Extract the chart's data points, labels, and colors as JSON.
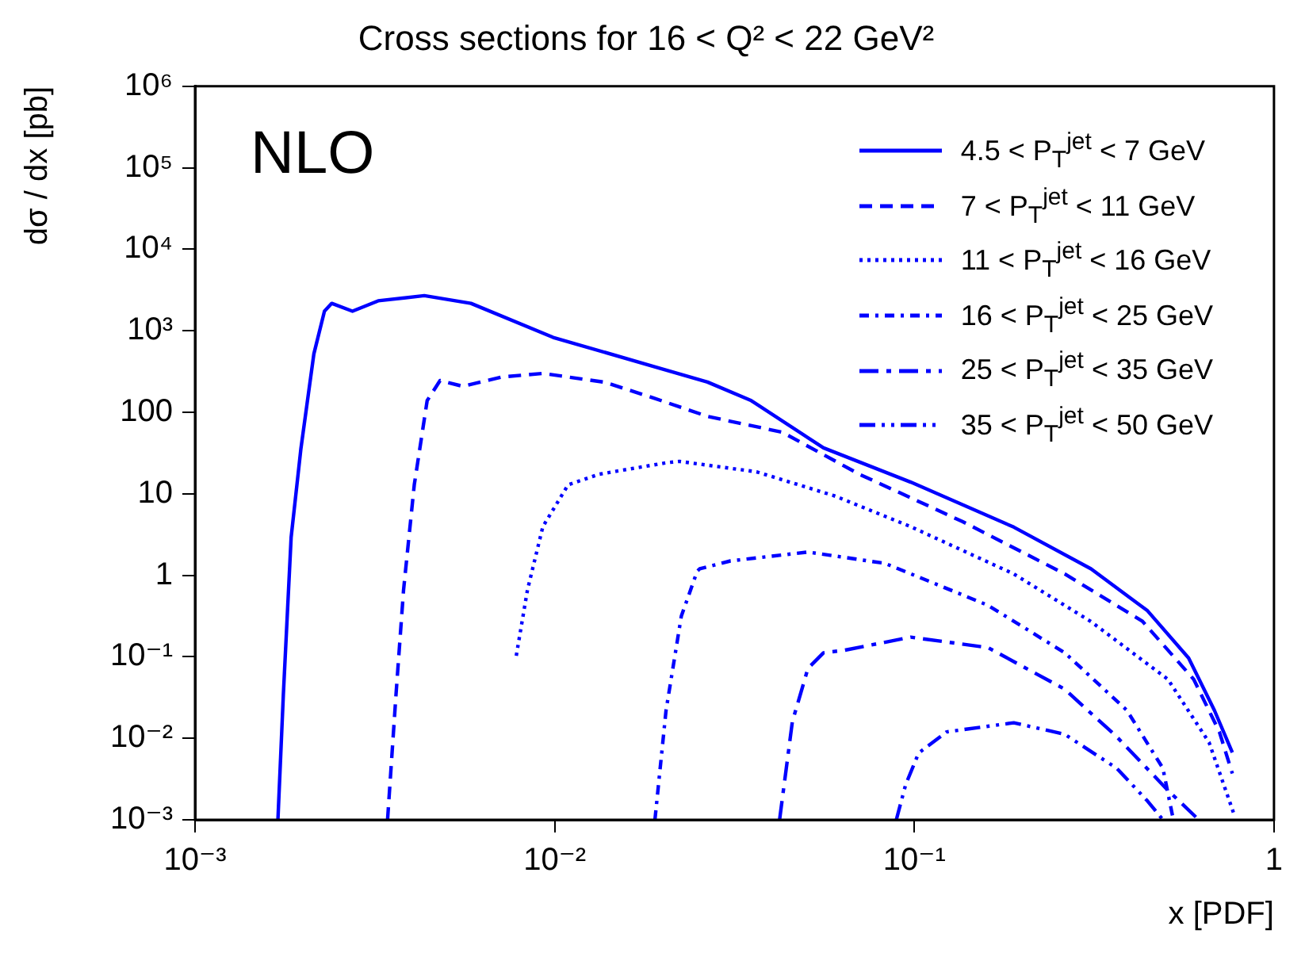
{
  "chart_data": {
    "type": "line",
    "title": "Cross sections for 16 < Q² < 22 GeV²",
    "xlabel": "x [PDF]",
    "ylabel": "dσ / dx [pb]",
    "annotations": [
      "NLO"
    ],
    "log": "xy",
    "grid": false,
    "legend": "top right",
    "marker": "none",
    "xlim": [
      0.001,
      1
    ],
    "ylim": [
      0.001,
      1000000
    ],
    "xticks": [
      {
        "value": 0.001,
        "label": "10⁻³"
      },
      {
        "value": 0.01,
        "label": "10⁻²"
      },
      {
        "value": 0.1,
        "label": "10⁻¹"
      },
      1
    ],
    "yticks": [
      {
        "value": 0.001,
        "label": "10⁻³"
      },
      {
        "value": 0.01,
        "label": "10⁻²"
      },
      {
        "value": 0.1,
        "label": "10⁻¹"
      },
      1,
      10,
      100,
      {
        "value": 1000,
        "label": "10³"
      },
      {
        "value": 10000,
        "label": "10⁴"
      },
      {
        "value": 100000,
        "label": "10⁵"
      },
      {
        "value": 1000000,
        "label": "10⁶"
      }
    ],
    "series": [
      {
        "name": "4.5 < P$_{T}$$^{jet}$ < 7 GeV",
        "color": "#0000ff",
        "line_style": "solid",
        "x": [
          0.0017,
          0.00176,
          0.00185,
          0.00197,
          0.00214,
          0.00229,
          0.0024,
          0.00274,
          0.00323,
          0.00434,
          0.00585,
          0.0099,
          0.0188,
          0.0266,
          0.0352,
          0.0559,
          0.0977,
          0.189,
          0.31,
          0.445,
          0.579,
          0.683,
          0.766
        ],
        "values": [
          0.001,
          0.034,
          2.9,
          36,
          520,
          1740,
          2170,
          1740,
          2330,
          2700,
          2170,
          830,
          366,
          235,
          139,
          36.6,
          13.9,
          3.9,
          1.2,
          0.367,
          0.0966,
          0.022,
          0.0067
        ]
      },
      {
        "name": "7 < P$_{T}$$^{jet}$ < 11 GeV",
        "color": "#0000ff",
        "line_style": "dashed",
        "x": [
          0.00343,
          0.00362,
          0.0038,
          0.00407,
          0.00442,
          0.0048,
          0.00556,
          0.00713,
          0.00927,
          0.01376,
          0.0188,
          0.0266,
          0.0429,
          0.0703,
          0.136,
          0.262,
          0.431,
          0.598,
          0.705,
          0.766
        ],
        "values": [
          0.001,
          0.034,
          0.66,
          12.9,
          139,
          245,
          208,
          271,
          300,
          234,
          150,
          89,
          57,
          17.4,
          4.57,
          1.04,
          0.272,
          0.053,
          0.012,
          0.0037
        ]
      },
      {
        "name": "11 < P$_{T}$$^{jet}$ < 16 GeV",
        "color": "#0000ff",
        "line_style": "dotted",
        "x": [
          0.00782,
          0.0084,
          0.00927,
          0.0109,
          0.0133,
          0.0204,
          0.0222,
          0.0364,
          0.0597,
          0.0977,
          0.189,
          0.31,
          0.507,
          0.66,
          0.778
        ],
        "values": [
          0.103,
          0.66,
          3.95,
          12.9,
          17.4,
          24,
          25,
          18.6,
          9.5,
          3.95,
          1.04,
          0.27,
          0.053,
          0.0089,
          0.0011
        ]
      },
      {
        "name": "16 < P$_{T}$$^{jet}$ < 25 GeV",
        "color": "#0000ff",
        "line_style": "dashdot",
        "x": [
          0.019,
          0.0204,
          0.0225,
          0.0249,
          0.0253,
          0.0308,
          0.0506,
          0.0829,
          0.16,
          0.262,
          0.39,
          0.491,
          0.525
        ],
        "values": [
          0.001,
          0.022,
          0.316,
          1.12,
          1.2,
          1.5,
          1.93,
          1.4,
          0.43,
          0.112,
          0.022,
          0.0043,
          0.001
        ]
      },
      {
        "name": "25 < P$_{T}$$^{jet}$ < 35 GeV",
        "color": "#0000ff",
        "line_style": "longdashdot",
        "x": [
          0.0422,
          0.0458,
          0.0506,
          0.0559,
          0.0637,
          0.0977,
          0.16,
          0.262,
          0.365,
          0.507,
          0.618
        ],
        "values": [
          0.001,
          0.016,
          0.072,
          0.112,
          0.12,
          0.174,
          0.13,
          0.04,
          0.0105,
          0.0023,
          0.001
        ]
      },
      {
        "name": "35 < P$_{T}$$^{jet}$ < 50 GeV",
        "color": "#0000ff",
        "line_style": "dashdotdot",
        "x": [
          0.0891,
          0.0946,
          0.1028,
          0.123,
          0.189,
          0.262,
          0.365,
          0.445,
          0.491
        ],
        "values": [
          0.001,
          0.0027,
          0.0066,
          0.012,
          0.0155,
          0.0112,
          0.0043,
          0.0017,
          0.001
        ]
      }
    ]
  }
}
